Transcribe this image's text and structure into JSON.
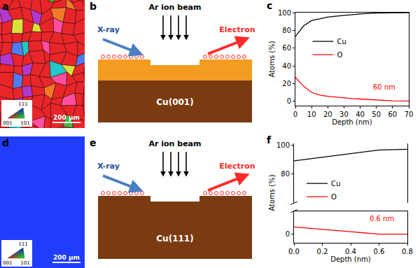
{
  "figure": {
    "panel_labels": [
      "a",
      "b",
      "c",
      "d",
      "e",
      "f"
    ]
  },
  "ebsd_maps": [
    {
      "scale_bar": "200 μm",
      "ipf_legend": [
        "111",
        "001",
        "101"
      ],
      "grain_colors": [
        "#e8262a",
        "#f07a2a",
        "#ff4fa0",
        "#b03ad0",
        "#3dbb45",
        "#d8e23a",
        "#4f7cf0",
        "#22c7c7"
      ]
    },
    {
      "scale_bar": "200 μm",
      "ipf_legend": [
        "111",
        "001",
        "101"
      ],
      "grain_colors": [
        "#1f3cff"
      ]
    }
  ],
  "schematics": [
    {
      "beam": "Ar ion beam",
      "incoming": "X-ray",
      "outgoing": "Electron",
      "substrate": "Cu(001)",
      "layers": [
        "#f39c1f",
        "#7b3b10"
      ]
    },
    {
      "beam": "Ar ion beam",
      "incoming": "X-ray",
      "outgoing": "Electron",
      "substrate": "Cu(111)",
      "layers": [
        "#7b3b10"
      ]
    }
  ],
  "chart_data": [
    {
      "type": "line",
      "x_label": "Depth (nm)",
      "y_label": "Atoms (%)",
      "x": [
        0,
        5,
        10,
        15,
        20,
        25,
        30,
        35,
        40,
        50,
        60,
        70
      ],
      "series": [
        {
          "name": "Cu",
          "color": "#000000",
          "values": [
            73,
            85,
            91,
            93,
            95,
            96,
            97,
            98,
            98.5,
            99.5,
            100,
            100
          ]
        },
        {
          "name": "O",
          "color": "#ff0000",
          "values": [
            27,
            17,
            10,
            7,
            5.5,
            4.5,
            3.5,
            3,
            2.5,
            1.5,
            0.5,
            0.3
          ]
        }
      ],
      "xlim": [
        0,
        70
      ],
      "xticks": [
        0,
        10,
        20,
        30,
        40,
        50,
        60,
        70
      ],
      "ylim": [
        -5,
        100
      ],
      "yticks": [
        0,
        20,
        40,
        60,
        80,
        100
      ],
      "legend": "upper left",
      "annotations": [
        {
          "text": "60 nm",
          "x": 55,
          "y": 10,
          "color": "#ff0000"
        }
      ]
    },
    {
      "type": "line",
      "x_label": "Depth (nm)",
      "y_label": "Atoms (%)",
      "x": [
        0,
        0.6,
        0.8
      ],
      "series": [
        {
          "name": "Cu",
          "color": "#000000",
          "values": [
            89,
            96.5,
            97
          ],
          "axis": "y2"
        },
        {
          "name": "O",
          "color": "#ff0000",
          "values": [
            2.5,
            0,
            0
          ]
        }
      ],
      "xlim": [
        0,
        0.8
      ],
      "xticks": [
        {
          "value": 0,
          "label": "0.0"
        },
        0.2,
        0.4,
        0.6,
        0.8
      ],
      "ylim": [
        -3,
        8
      ],
      "yticks": [
        0
      ],
      "y2lim": [
        60,
        101
      ],
      "y2ticks": [
        80,
        100
      ],
      "legend": "upper left",
      "annotations": [
        {
          "text": "0.6 nm",
          "x": 0.62,
          "y": 3.5,
          "color": "#ff0000"
        }
      ]
    }
  ]
}
